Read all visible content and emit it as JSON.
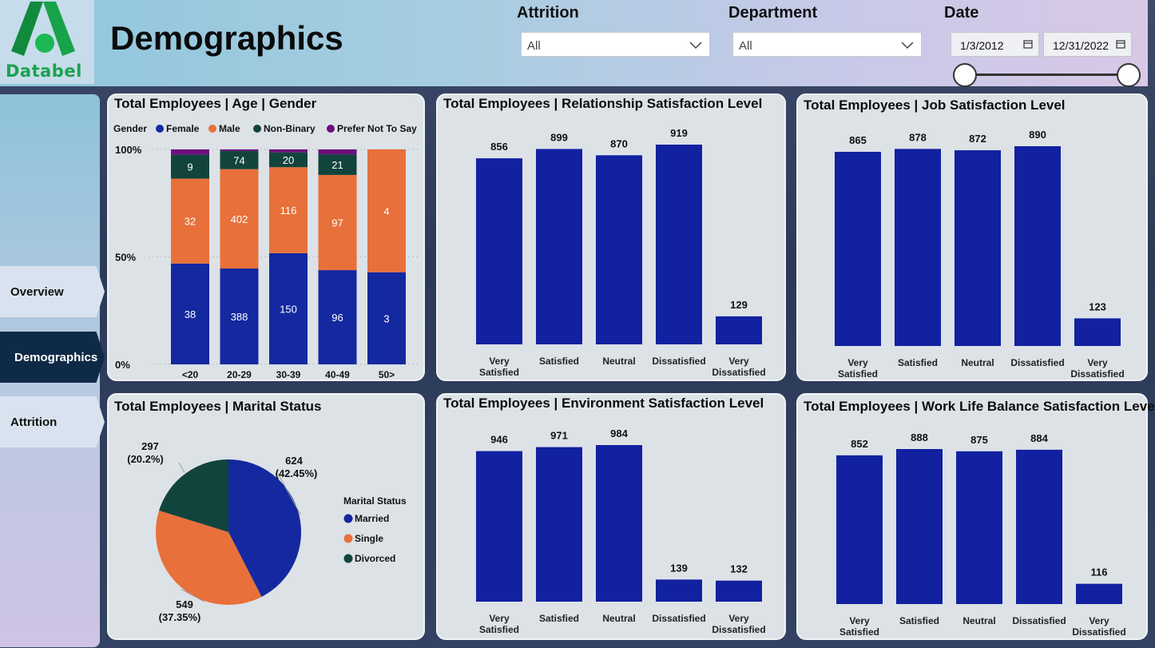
{
  "header": {
    "logo_text": "Databel",
    "title": "Demographics",
    "filters": {
      "attrition": {
        "label": "Attrition",
        "value": "All"
      },
      "department": {
        "label": "Department",
        "value": "All"
      },
      "date": {
        "label": "Date",
        "start": "1/3/2012",
        "end": "12/31/2022"
      }
    }
  },
  "sidebar": {
    "items": [
      {
        "label": "Overview",
        "active": false
      },
      {
        "label": "Demographics",
        "active": true
      },
      {
        "label": "Attrition",
        "active": false
      }
    ]
  },
  "colors": {
    "female": "#1428a0",
    "male": "#e8703a",
    "non_binary": "#12443e",
    "prefer_not": "#6a0f7a",
    "bar": "#1121a0"
  },
  "chart_data": [
    {
      "id": "age-gender",
      "type": "bar",
      "stacked": "percent",
      "title": "Total Employees | Age | Gender",
      "legend_title": "Gender",
      "legend_position": "top",
      "categories": [
        "<20",
        "20-29",
        "30-39",
        "40-49",
        "50>"
      ],
      "yticks": [
        "0%",
        "50%",
        "100%"
      ],
      "series": [
        {
          "name": "Female",
          "values": [
            38,
            388,
            150,
            96,
            3
          ]
        },
        {
          "name": "Male",
          "values": [
            32,
            402,
            116,
            97,
            4
          ]
        },
        {
          "name": "Non-Binary",
          "values": [
            9,
            74,
            20,
            21,
            0
          ]
        },
        {
          "name": "Prefer Not To Say",
          "values": [
            2,
            6,
            4,
            5,
            0
          ]
        }
      ]
    },
    {
      "id": "relationship",
      "type": "bar",
      "title": "Total Employees | Relationship Satisfaction Level",
      "categories": [
        "Very\nSatisfied",
        "Satisfied",
        "Neutral",
        "Dissatisfied",
        "Very\nDissatisfied"
      ],
      "values": [
        856,
        899,
        870,
        919,
        129
      ]
    },
    {
      "id": "job",
      "type": "bar",
      "title": "Total Employees | Job Satisfaction Level",
      "categories": [
        "Very\nSatisfied",
        "Satisfied",
        "Neutral",
        "Dissatisfied",
        "Very\nDissatisfied"
      ],
      "values": [
        865,
        878,
        872,
        890,
        123
      ]
    },
    {
      "id": "marital",
      "type": "pie",
      "title": "Total Employees | Marital Status",
      "legend_title": "Marital Status",
      "legend_position": "right",
      "slices": [
        {
          "name": "Married",
          "value": 624,
          "percent": "(42.45%)"
        },
        {
          "name": "Single",
          "value": 549,
          "percent": "(37.35%)"
        },
        {
          "name": "Divorced",
          "value": 297,
          "percent": "(20.2%)"
        }
      ]
    },
    {
      "id": "environment",
      "type": "bar",
      "title": "Total Employees | Environment Satisfaction Level",
      "categories": [
        "Very\nSatisfied",
        "Satisfied",
        "Neutral",
        "Dissatisfied",
        "Very\nDissatisfied"
      ],
      "values": [
        946,
        971,
        984,
        139,
        132
      ]
    },
    {
      "id": "worklife",
      "type": "bar",
      "title": "Total Employees | Work Life Balance Satisfaction Level",
      "categories": [
        "Very\nSatisfied",
        "Satisfied",
        "Neutral",
        "Dissatisfied",
        "Very\nDissatisfied"
      ],
      "values": [
        852,
        888,
        875,
        884,
        116
      ]
    }
  ]
}
